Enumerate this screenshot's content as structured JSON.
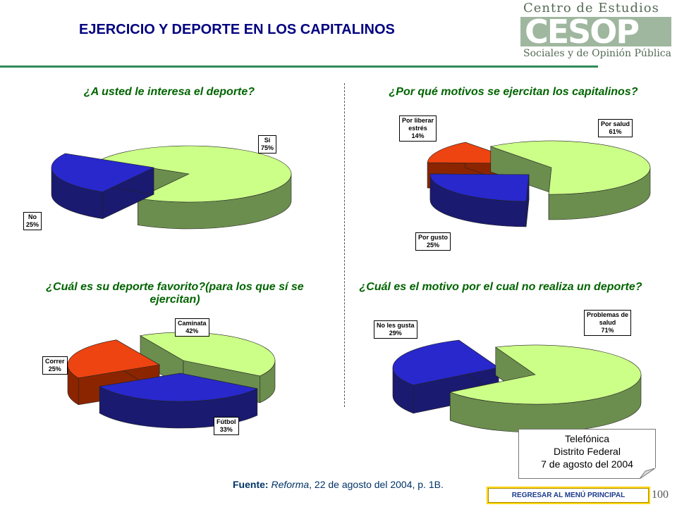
{
  "header": {
    "title": "EJERCICIO Y DEPORTE EN LOS CAPITALINOS",
    "logo_line1": "Centro de Estudios",
    "logo_letters": "CESOP",
    "logo_line3": "Sociales y de Opinión Pública"
  },
  "colors": {
    "green_top": "#ccff88",
    "green_side": "#6b8e4e",
    "blue_top": "#2828cc",
    "blue_side": "#1a1a70",
    "orange_top": "#ee4411",
    "orange_side": "#8b2500",
    "title": "#000080",
    "question": "#006400"
  },
  "chart_data": [
    {
      "type": "pie",
      "title": "¿A usted le interesa el deporte?",
      "categories": [
        "Sí",
        "No"
      ],
      "values": [
        75,
        25
      ],
      "labels": [
        [
          "Sí",
          "75%"
        ],
        [
          "No",
          "25%"
        ]
      ]
    },
    {
      "type": "pie",
      "title": "¿Por qué motivos se ejercitan los capitalinos?",
      "categories": [
        "Por salud",
        "Por gusto",
        "Por liberar estrés"
      ],
      "values": [
        61,
        25,
        14
      ],
      "labels": [
        [
          "Por salud",
          "61%"
        ],
        [
          "Por gusto",
          "25%"
        ],
        [
          "Por liberar",
          "estrés",
          "14%"
        ]
      ]
    },
    {
      "type": "pie",
      "title": "¿Cuál es su deporte favorito?(para los que sí se ejercitan)",
      "categories": [
        "Caminata",
        "Fútbol",
        "Correr"
      ],
      "values": [
        42,
        33,
        25
      ],
      "labels": [
        [
          "Caminata",
          "42%"
        ],
        [
          "Fútbol",
          "33%"
        ],
        [
          "Correr",
          "25%"
        ]
      ]
    },
    {
      "type": "pie",
      "title": "¿Cuál es el motivo por el cual no realiza un deporte?",
      "categories": [
        "Problemas de salud",
        "No les gusta"
      ],
      "values": [
        71,
        29
      ],
      "labels": [
        [
          "Problemas de",
          "salud",
          "71%"
        ],
        [
          "No les gusta",
          "29%"
        ]
      ]
    }
  ],
  "source": {
    "label": "Fuente:",
    "publication": "Reforma",
    "rest": ", 22 de agosto del 2004, p. 1B."
  },
  "note": {
    "line1": "Telefónica",
    "line2": "Distrito Federal",
    "line3": "7 de agosto del 2004"
  },
  "nav": {
    "back_label": "REGRESAR AL MENÚ PRINCIPAL"
  },
  "page_number": "100"
}
